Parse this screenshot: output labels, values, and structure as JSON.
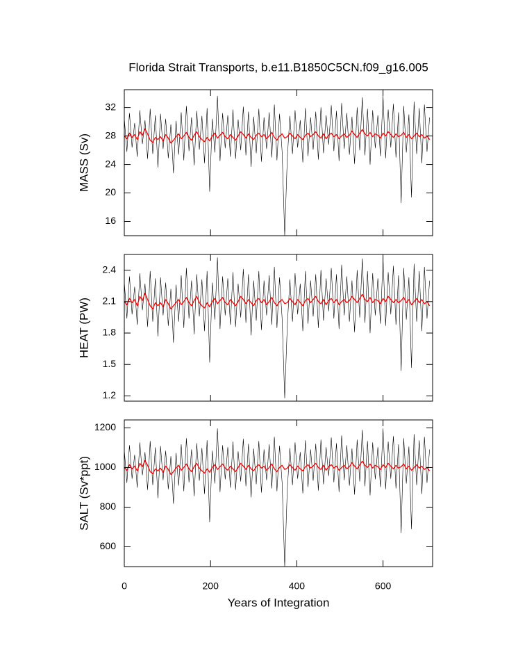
{
  "chart_data": {
    "type": "line",
    "title": "Florida Strait Transports, b.e11.B1850C5CN.f09_g16.005",
    "xlabel": "Years of Integration",
    "xlim": [
      0,
      715
    ],
    "xticks": [
      0,
      200,
      400,
      600
    ],
    "x": [
      0,
      6,
      12,
      18,
      24,
      30,
      36,
      42,
      48,
      54,
      60,
      66,
      72,
      78,
      84,
      90,
      96,
      102,
      108,
      114,
      120,
      126,
      132,
      138,
      144,
      150,
      156,
      162,
      168,
      174,
      180,
      186,
      192,
      198,
      204,
      210,
      216,
      222,
      228,
      234,
      240,
      246,
      252,
      258,
      264,
      270,
      276,
      282,
      288,
      294,
      300,
      306,
      312,
      318,
      324,
      330,
      336,
      342,
      348,
      354,
      360,
      366,
      372,
      378,
      384,
      390,
      396,
      402,
      408,
      414,
      420,
      426,
      432,
      438,
      444,
      450,
      456,
      462,
      468,
      474,
      480,
      486,
      492,
      498,
      504,
      510,
      516,
      522,
      528,
      534,
      540,
      546,
      552,
      558,
      564,
      570,
      576,
      582,
      588,
      594,
      600,
      606,
      612,
      618,
      624,
      630,
      636,
      642,
      648,
      654,
      660,
      666,
      672,
      678,
      684,
      690,
      696,
      702,
      708
    ],
    "panels": [
      {
        "ylabel": "MASS (Sv)",
        "ylim": [
          14,
          34.5
        ],
        "yticks": [
          16,
          20,
          24,
          28,
          32
        ],
        "series": [
          {
            "color": "#000000",
            "values": [
              30.5,
              25.8,
              31.2,
              26.4,
              29.8,
              25.1,
              31.6,
              26.9,
              30.2,
              24.8,
              31.8,
              25.5,
              30.9,
              23.6,
              31.1,
              26.2,
              30.4,
              24.9,
              29.6,
              22.8,
              30.1,
              25.4,
              31.3,
              24.6,
              32.2,
              25.9,
              30.6,
              23.9,
              31.5,
              26.1,
              30.8,
              24.2,
              31.9,
              20.2,
              30.4,
              25.7,
              33.6,
              24.5,
              31.2,
              26.3,
              30.9,
              25.1,
              31.7,
              24.8,
              30.3,
              26.0,
              32.1,
              25.3,
              31.4,
              23.7,
              30.7,
              25.6,
              31.8,
              24.4,
              30.6,
              26.2,
              31.3,
              25.0,
              32.4,
              24.6,
              31.1,
              25.8,
              14.0,
              24.9,
              30.8,
              25.5,
              31.6,
              26.4,
              30.2,
              24.3,
              31.9,
              25.2,
              30.6,
              26.1,
              31.4,
              24.7,
              32.0,
              25.6,
              30.9,
              26.8,
              32.3,
              25.9,
              31.5,
              24.5,
              32.6,
              26.2,
              31.2,
              25.4,
              30.7,
              24.1,
              32.0,
              26.0,
              33.4,
              25.3,
              31.8,
              24.0,
              31.6,
              26.3,
              30.9,
              25.2,
              33.6,
              24.9,
              31.7,
              26.4,
              32.5,
              25.0,
              31.3,
              18.6,
              32.2,
              25.7,
              31.0,
              19.4,
              32.8,
              25.5,
              31.9,
              24.2,
              32.4,
              25.8,
              30.6
            ]
          },
          {
            "color": "#ff0000",
            "values": [
              28.0,
              27.6,
              28.4,
              27.8,
              28.2,
              27.5,
              28.6,
              28.1,
              29.0,
              28.3,
              27.4,
              27.1,
              27.8,
              27.5,
              27.9,
              27.3,
              28.2,
              27.7,
              27.0,
              27.4,
              27.9,
              28.3,
              27.6,
              28.0,
              28.5,
              27.8,
              27.4,
              28.1,
              28.6,
              27.9,
              27.5,
              27.2,
              27.8,
              27.3,
              28.0,
              28.4,
              27.7,
              28.1,
              28.5,
              27.9,
              27.6,
              28.2,
              27.8,
              27.4,
              28.0,
              28.6,
              28.2,
              27.7,
              28.3,
              27.8,
              27.5,
              28.1,
              28.4,
              27.9,
              28.2,
              27.6,
              28.0,
              28.5,
              27.8,
              27.4,
              28.0,
              28.3,
              27.7,
              27.9,
              28.4,
              28.0,
              27.6,
              28.2,
              27.8,
              27.5,
              28.1,
              28.4,
              27.9,
              28.2,
              28.6,
              28.0,
              27.7,
              28.3,
              27.6,
              28.1,
              28.4,
              27.9,
              28.2,
              27.6,
              28.0,
              28.3,
              27.8,
              28.1,
              28.7,
              28.2,
              27.8,
              28.4,
              28.9,
              28.3,
              28.0,
              28.5,
              27.9,
              28.3,
              28.1,
              27.7,
              28.4,
              28.0,
              28.6,
              28.2,
              27.8,
              28.3,
              27.9,
              28.1,
              28.5,
              27.8,
              28.2,
              27.6,
              28.0,
              28.4,
              27.9,
              28.2,
              27.7,
              28.0,
              27.5
            ]
          }
        ]
      },
      {
        "ylabel": "HEAT (PW)",
        "ylim": [
          1.15,
          2.55
        ],
        "yticks": [
          1.2,
          1.5,
          1.8,
          2.1,
          2.4
        ],
        "series": [
          {
            "color": "#000000",
            "values": [
              2.29,
              1.94,
              2.34,
              1.98,
              2.24,
              1.88,
              2.37,
              2.02,
              2.27,
              1.86,
              2.39,
              1.91,
              2.32,
              1.77,
              2.33,
              1.97,
              2.28,
              1.87,
              2.22,
              1.71,
              2.26,
              1.91,
              2.35,
              1.85,
              2.42,
              1.94,
              2.3,
              1.79,
              2.36,
              1.96,
              2.31,
              1.82,
              2.39,
              1.52,
              2.28,
              1.93,
              2.52,
              1.84,
              2.34,
              1.97,
              2.32,
              1.88,
              2.38,
              1.86,
              2.27,
              1.95,
              2.41,
              1.9,
              2.36,
              1.78,
              2.3,
              1.92,
              2.39,
              1.83,
              2.3,
              1.97,
              2.35,
              1.88,
              2.43,
              1.85,
              2.33,
              1.94,
              1.18,
              1.87,
              2.31,
              1.91,
              2.37,
              1.98,
              2.27,
              1.82,
              2.39,
              1.89,
              2.3,
              1.96,
              2.36,
              1.85,
              2.4,
              1.92,
              2.32,
              2.01,
              2.42,
              1.94,
              2.36,
              1.84,
              2.45,
              1.97,
              2.34,
              1.91,
              2.3,
              1.81,
              2.4,
              1.95,
              2.51,
              1.9,
              2.39,
              1.8,
              2.37,
              1.97,
              2.32,
              1.89,
              2.52,
              1.87,
              2.38,
              1.98,
              2.44,
              1.88,
              2.35,
              1.44,
              2.42,
              1.93,
              2.33,
              1.47,
              2.46,
              1.91,
              2.39,
              1.82,
              2.43,
              1.94,
              2.3
            ]
          },
          {
            "color": "#ff0000",
            "values": [
              2.1,
              2.07,
              2.13,
              2.09,
              2.12,
              2.06,
              2.15,
              2.11,
              2.18,
              2.12,
              2.06,
              2.03,
              2.09,
              2.06,
              2.09,
              2.05,
              2.12,
              2.08,
              2.03,
              2.06,
              2.09,
              2.12,
              2.07,
              2.1,
              2.14,
              2.09,
              2.06,
              2.11,
              2.15,
              2.09,
              2.06,
              2.04,
              2.09,
              2.05,
              2.1,
              2.13,
              2.08,
              2.11,
              2.14,
              2.09,
              2.07,
              2.12,
              2.09,
              2.06,
              2.1,
              2.15,
              2.12,
              2.08,
              2.12,
              2.09,
              2.06,
              2.11,
              2.13,
              2.09,
              2.12,
              2.07,
              2.1,
              2.14,
              2.09,
              2.06,
              2.1,
              2.12,
              2.08,
              2.09,
              2.13,
              2.1,
              2.07,
              2.12,
              2.09,
              2.06,
              2.11,
              2.13,
              2.09,
              2.12,
              2.15,
              2.1,
              2.08,
              2.12,
              2.07,
              2.11,
              2.13,
              2.09,
              2.12,
              2.07,
              2.1,
              2.12,
              2.09,
              2.11,
              2.15,
              2.12,
              2.09,
              2.13,
              2.17,
              2.12,
              2.1,
              2.14,
              2.09,
              2.12,
              2.11,
              2.08,
              2.13,
              2.1,
              2.15,
              2.12,
              2.09,
              2.12,
              2.09,
              2.11,
              2.14,
              2.09,
              2.12,
              2.07,
              2.1,
              2.13,
              2.09,
              2.12,
              2.08,
              2.1,
              2.06
            ]
          }
        ]
      },
      {
        "ylabel": "SALT (Sv*ppt)",
        "ylim": [
          500,
          1240
        ],
        "yticks": [
          600,
          800,
          1000,
          1200
        ],
        "series": [
          {
            "color": "#000000",
            "values": [
              1088,
              923,
              1112,
              944,
              1063,
              899,
              1126,
              962,
              1077,
              888,
              1133,
              912,
              1101,
              846,
              1108,
              937,
              1084,
              891,
              1056,
              818,
              1073,
              909,
              1116,
              881,
              1147,
              926,
              1091,
              856,
              1122,
              934,
              1098,
              867,
              1137,
              725,
              1084,
              920,
              1196,
              877,
              1112,
              941,
              1102,
              899,
              1130,
              888,
              1081,
              930,
              1144,
              906,
              1119,
              850,
              1095,
              916,
              1133,
              874,
              1091,
              937,
              1116,
              895,
              1154,
              881,
              1109,
              923,
              500,
              891,
              1098,
              912,
              1126,
              944,
              1077,
              870,
              1137,
              902,
              1091,
              934,
              1119,
              884,
              1140,
              916,
              1102,
              958,
              1151,
              926,
              1122,
              877,
              1161,
              937,
              1112,
              909,
              1095,
              864,
              1140,
              930,
              1189,
              906,
              1133,
              860,
              1126,
              941,
              1102,
              902,
              1196,
              891,
              1130,
              944,
              1158,
              895,
              1116,
              670,
              1147,
              920,
              1105,
              690,
              1168,
              912,
              1137,
              867,
              1154,
              923,
              1091
            ]
          },
          {
            "color": "#ff0000",
            "values": [
              1000,
              986,
              1014,
              993,
              1007,
              983,
              1021,
              1004,
              1035,
              1011,
              979,
              969,
              993,
              983,
              997,
              976,
              1007,
              990,
              965,
              979,
              997,
              1011,
              986,
              1000,
              1018,
              993,
              979,
              1004,
              1021,
              997,
              983,
              972,
              993,
              976,
              1000,
              1014,
              990,
              1004,
              1018,
              997,
              986,
              1007,
              993,
              979,
              1000,
              1021,
              1007,
              990,
              1011,
              993,
              983,
              1004,
              1014,
              997,
              1007,
              986,
              1000,
              1018,
              993,
              979,
              1000,
              1011,
              990,
              997,
              1014,
              1000,
              986,
              1007,
              993,
              983,
              1004,
              1014,
              997,
              1007,
              1021,
              1000,
              990,
              1011,
              986,
              1004,
              1014,
              997,
              1007,
              986,
              1000,
              1011,
              993,
              1004,
              1025,
              1007,
              993,
              1014,
              1032,
              1011,
              1000,
              1018,
              997,
              1011,
              1004,
              990,
              1014,
              1000,
              1021,
              1007,
              993,
              1011,
              997,
              1004,
              1018,
              993,
              1007,
              986,
              1000,
              1014,
              997,
              1007,
              990,
              1000,
              983
            ]
          }
        ]
      }
    ]
  }
}
